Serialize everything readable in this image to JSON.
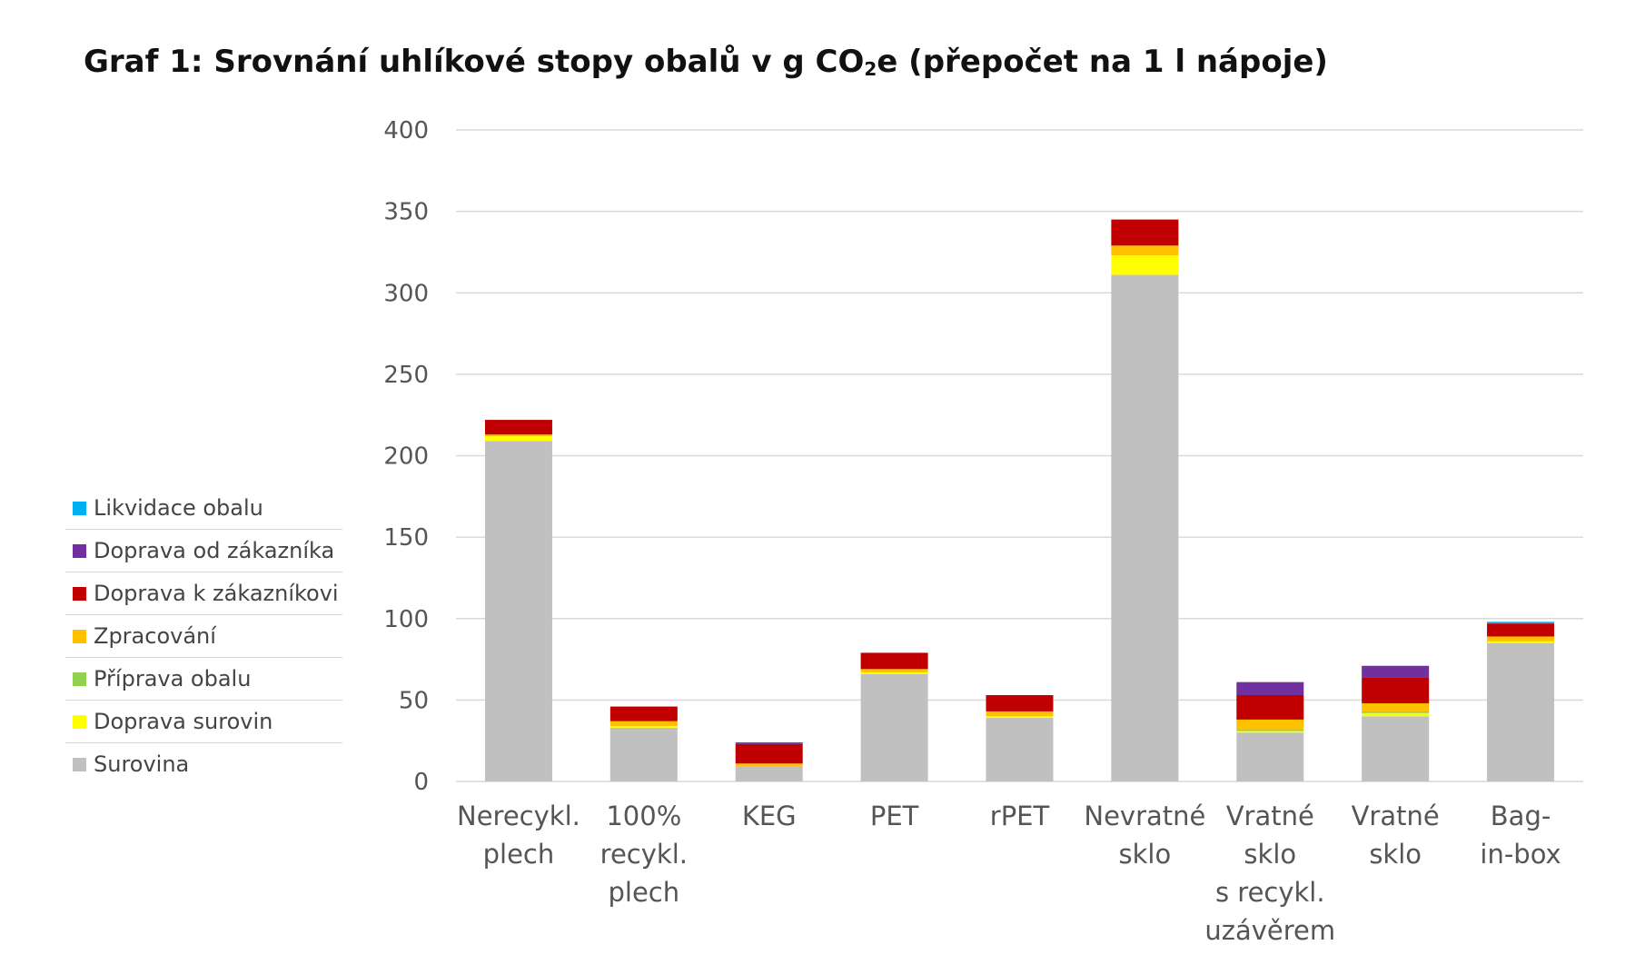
{
  "title": {
    "main": "Graf 1: Srovnání uhlíkové stopy obalů v g CO",
    "subscript": "2",
    "suffix": "e (přepočet na 1 l nápoje)"
  },
  "chart_data": {
    "type": "bar",
    "stacked": true,
    "title": "Graf 1: Srovnání uhlíkové stopy obalů v g CO2e (přepočet na 1 l nápoje)",
    "xlabel": "",
    "ylabel": "",
    "ylim": [
      0,
      400
    ],
    "yticks": [
      0,
      50,
      100,
      150,
      200,
      250,
      300,
      350,
      400
    ],
    "grid": true,
    "legend_position": "left",
    "categories": [
      [
        "Nerecykl.",
        "plech"
      ],
      [
        "100%",
        "recykl.",
        "plech"
      ],
      [
        "KEG"
      ],
      [
        "PET"
      ],
      [
        "rPET"
      ],
      [
        "Nevratné",
        "sklo"
      ],
      [
        "Vratné",
        "sklo",
        "s recykl.",
        "uzávěrem"
      ],
      [
        "Vratné",
        "sklo"
      ],
      [
        "Bag-",
        "in-box"
      ]
    ],
    "series": [
      {
        "name": "Surovina",
        "color": "#c0c0c0",
        "values": [
          209,
          33,
          9,
          66,
          39,
          311,
          30,
          40,
          85
        ]
      },
      {
        "name": "Doprava surovin",
        "color": "#ffff00",
        "values": [
          3,
          1,
          0,
          1,
          1,
          12,
          1,
          2,
          1
        ]
      },
      {
        "name": "Příprava obalu",
        "color": "#92d050",
        "values": [
          0,
          0,
          0,
          0,
          0,
          0,
          1,
          1,
          0
        ]
      },
      {
        "name": "Zpracování",
        "color": "#ffc000",
        "values": [
          1,
          3,
          2,
          2,
          3,
          6,
          6,
          5,
          3
        ]
      },
      {
        "name": "Doprava k zákazníkovi",
        "color": "#c00000",
        "values": [
          9,
          9,
          12,
          10,
          10,
          16,
          15,
          16,
          8
        ]
      },
      {
        "name": "Doprava od zákazníka",
        "color": "#7030a0",
        "values": [
          0,
          0,
          1,
          0,
          0,
          0,
          8,
          7,
          0
        ]
      },
      {
        "name": "Likvidace obalu",
        "color": "#00b0f0",
        "values": [
          0,
          0,
          0,
          0,
          0,
          0,
          0,
          0,
          1
        ]
      }
    ]
  }
}
